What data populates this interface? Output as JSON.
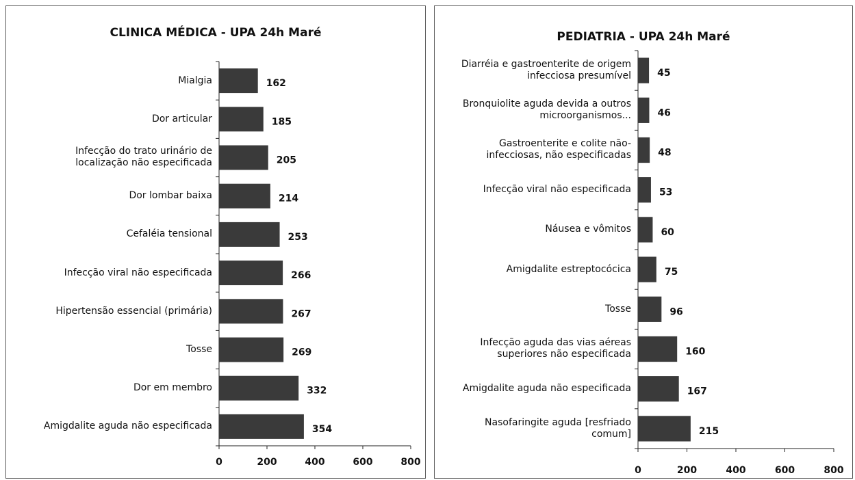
{
  "chart_data": [
    {
      "type": "bar",
      "orientation": "horizontal",
      "title": "CLINICA MÉDICA - UPA 24h Maré",
      "color": "#3a3a3a",
      "categories": [
        "Mialgia",
        "Dor articular",
        "Infecção do trato urinário de localização não especificada",
        "Dor lombar baixa",
        "Cefaléia tensional",
        "Infecção viral não especificada",
        "Hipertensão essencial (primária)",
        "Tosse",
        "Dor em membro",
        "Amigdalite aguda não especificada"
      ],
      "values": [
        162,
        185,
        205,
        214,
        253,
        266,
        267,
        269,
        332,
        354
      ],
      "xlim": [
        0,
        800
      ],
      "xticks": [
        0,
        200,
        400,
        600,
        800
      ]
    },
    {
      "type": "bar",
      "orientation": "horizontal",
      "title": "PEDIATRIA - UPA 24h Maré",
      "color": "#3a3a3a",
      "categories": [
        "Diarréia e gastroenterite de origem infecciosa presumível",
        "Bronquiolite aguda devida a outros microorganismos...",
        "Gastroenterite e colite não-infecciosas, não especificadas",
        "Infecção viral não especificada",
        "Náusea e vômitos",
        "Amigdalite estreptocócica",
        "Tosse",
        "Infecção aguda das vias aéreas superiores não especificada",
        "Amigdalite aguda não especificada",
        "Nasofaringite aguda [resfriado comum]"
      ],
      "values": [
        45,
        46,
        48,
        53,
        60,
        75,
        96,
        160,
        167,
        215
      ],
      "xlim": [
        0,
        800
      ],
      "xticks": [
        0,
        200,
        400,
        600,
        800
      ]
    }
  ]
}
